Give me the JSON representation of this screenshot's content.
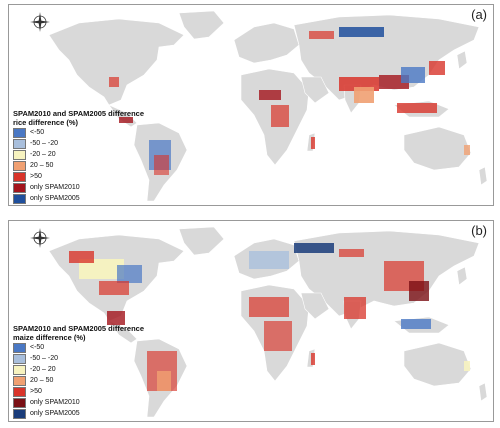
{
  "panels": [
    {
      "id": "a",
      "label": "(a)",
      "legend_title_1": "SPAM2010 and SPAM2005 difference",
      "legend_title_2": "rice difference (%)",
      "legend": [
        {
          "label": "<-50",
          "color": "#4a78c4"
        },
        {
          "label": "-50 – -20",
          "color": "#a9bfdc"
        },
        {
          "label": "-20 – 20",
          "color": "#f7f3c0"
        },
        {
          "label": "20 – 50",
          "color": "#f0a072"
        },
        {
          "label": ">50",
          "color": "#d8342a"
        },
        {
          "label": "only SPAM2010",
          "color": "#a3141c"
        },
        {
          "label": "only SPAM2005",
          "color": "#1f4f9c"
        }
      ]
    },
    {
      "id": "b",
      "label": "(b)",
      "legend_title_1": "SPAM2010 and SPAM2005 difference",
      "legend_title_2": "maize difference (%)",
      "legend": [
        {
          "label": "<-50",
          "color": "#4a78c4"
        },
        {
          "label": "-50 – -20",
          "color": "#a9bfdc"
        },
        {
          "label": "-20 – 20",
          "color": "#f7f3c0"
        },
        {
          "label": "20 – 50",
          "color": "#f0a072"
        },
        {
          "label": ">50",
          "color": "#d8342a"
        },
        {
          "label": "only SPAM2010",
          "color": "#7a0f14"
        },
        {
          "label": "only SPAM2005",
          "color": "#1a3c7a"
        }
      ]
    }
  ],
  "compass": {
    "n": "N",
    "s": "S",
    "e": "E",
    "w": "W"
  },
  "land_color": "#d9d9d9"
}
